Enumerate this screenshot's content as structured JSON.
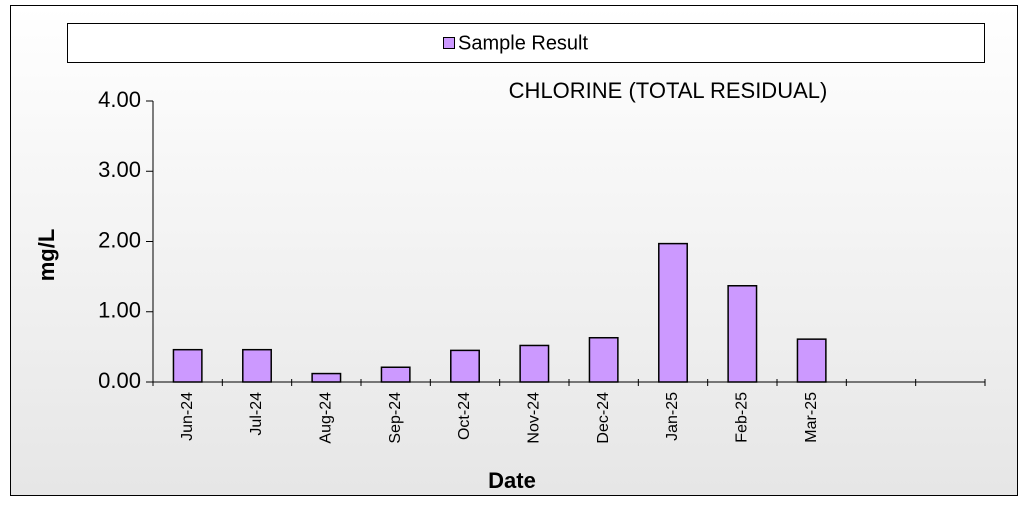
{
  "chart_data": {
    "type": "bar",
    "title": "CHLORINE (TOTAL RESIDUAL)",
    "x_label": "Date",
    "y_label": "mg/L",
    "categories": [
      "Jun-24",
      "Jul-24",
      "Aug-24",
      "Sep-24",
      "Oct-24",
      "Nov-24",
      "Dec-24",
      "Jan-25",
      "Feb-25",
      "Mar-25",
      null,
      null
    ],
    "series": [
      {
        "name": "Sample Result",
        "color": "#cc99ff",
        "values": [
          0.46,
          0.46,
          0.12,
          0.21,
          0.45,
          0.52,
          0.63,
          1.97,
          1.37,
          0.61,
          null,
          null
        ]
      }
    ],
    "ylim": [
      0,
      4
    ],
    "yticks": [
      {
        "value": 0,
        "label": "0.00"
      },
      {
        "value": 1,
        "label": "1.00"
      },
      {
        "value": 2,
        "label": "2.00"
      },
      {
        "value": 3,
        "label": "3.00"
      },
      {
        "value": 4,
        "label": "4.00"
      }
    ],
    "grid": false,
    "legend": "top"
  }
}
